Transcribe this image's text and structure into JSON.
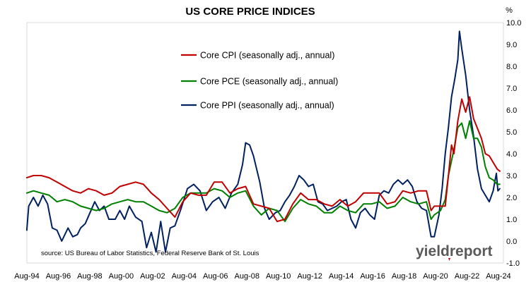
{
  "chart_data": {
    "type": "line",
    "title": "US CORE PRICE INDICES",
    "ylabel": "%",
    "ylim": [
      -1.0,
      10.0
    ],
    "yticks": [
      "-1.0",
      "0.0",
      "1.0",
      "2.0",
      "3.0",
      "4.0",
      "5.0",
      "6.0",
      "7.0",
      "8.0",
      "9.0",
      "10.0"
    ],
    "xlim": [
      1994.583,
      2024.9
    ],
    "xticks": [
      "Aug-94",
      "Aug-96",
      "Aug-98",
      "Aug-00",
      "Aug-02",
      "Aug-04",
      "Aug-06",
      "Aug-08",
      "Aug-10",
      "Aug-12",
      "Aug-14",
      "Aug-16",
      "Aug-18",
      "Aug-20",
      "Aug-22",
      "Aug-24"
    ],
    "grid": false,
    "legend_position": "top-center",
    "source": "source: US Bureau of Labor Statistics, Federal Reserve Bank of St. Louis",
    "watermark": "yieldreport",
    "series": [
      {
        "name": "Core CPI (seasonally adj., annual)",
        "color": "#c00000",
        "points": [
          [
            1994.58,
            2.9
          ],
          [
            1995.0,
            3.0
          ],
          [
            1995.5,
            3.0
          ],
          [
            1996.0,
            2.9
          ],
          [
            1996.5,
            2.7
          ],
          [
            1997.0,
            2.5
          ],
          [
            1997.5,
            2.3
          ],
          [
            1998.0,
            2.2
          ],
          [
            1998.5,
            2.4
          ],
          [
            1999.0,
            2.3
          ],
          [
            1999.5,
            2.1
          ],
          [
            2000.0,
            2.2
          ],
          [
            2000.5,
            2.5
          ],
          [
            2001.0,
            2.6
          ],
          [
            2001.5,
            2.7
          ],
          [
            2002.0,
            2.6
          ],
          [
            2002.5,
            2.2
          ],
          [
            2003.0,
            1.9
          ],
          [
            2003.5,
            1.5
          ],
          [
            2004.0,
            1.1
          ],
          [
            2004.5,
            1.8
          ],
          [
            2005.0,
            2.2
          ],
          [
            2005.5,
            2.1
          ],
          [
            2006.0,
            2.1
          ],
          [
            2006.5,
            2.7
          ],
          [
            2007.0,
            2.7
          ],
          [
            2007.5,
            2.2
          ],
          [
            2008.0,
            2.4
          ],
          [
            2008.5,
            2.5
          ],
          [
            2009.0,
            1.7
          ],
          [
            2009.5,
            1.6
          ],
          [
            2010.0,
            1.5
          ],
          [
            2010.5,
            0.9
          ],
          [
            2011.0,
            1.0
          ],
          [
            2011.5,
            1.7
          ],
          [
            2012.0,
            2.2
          ],
          [
            2012.5,
            1.9
          ],
          [
            2013.0,
            1.9
          ],
          [
            2013.5,
            1.7
          ],
          [
            2014.0,
            1.6
          ],
          [
            2014.5,
            1.9
          ],
          [
            2015.0,
            1.6
          ],
          [
            2015.5,
            1.8
          ],
          [
            2016.0,
            2.2
          ],
          [
            2016.5,
            2.2
          ],
          [
            2017.0,
            2.2
          ],
          [
            2017.5,
            1.7
          ],
          [
            2018.0,
            1.8
          ],
          [
            2018.5,
            2.3
          ],
          [
            2019.0,
            2.2
          ],
          [
            2019.5,
            2.3
          ],
          [
            2020.0,
            2.3
          ],
          [
            2020.3,
            1.4
          ],
          [
            2020.5,
            1.6
          ],
          [
            2020.9,
            1.6
          ],
          [
            2021.2,
            1.6
          ],
          [
            2021.4,
            3.0
          ],
          [
            2021.6,
            4.4
          ],
          [
            2021.75,
            4.0
          ],
          [
            2022.0,
            5.5
          ],
          [
            2022.25,
            6.5
          ],
          [
            2022.5,
            5.9
          ],
          [
            2022.75,
            6.6
          ],
          [
            2023.0,
            5.6
          ],
          [
            2023.5,
            4.7
          ],
          [
            2023.75,
            4.0
          ],
          [
            2024.0,
            3.9
          ],
          [
            2024.25,
            3.6
          ],
          [
            2024.5,
            3.3
          ],
          [
            2024.67,
            3.2
          ]
        ]
      },
      {
        "name": "Core PCE (seasonally adj., annual)",
        "color": "#008000",
        "points": [
          [
            1994.58,
            2.2
          ],
          [
            1995.0,
            2.3
          ],
          [
            1995.5,
            2.2
          ],
          [
            1996.0,
            2.1
          ],
          [
            1996.5,
            1.8
          ],
          [
            1997.0,
            1.9
          ],
          [
            1997.5,
            1.8
          ],
          [
            1998.0,
            1.6
          ],
          [
            1998.5,
            1.5
          ],
          [
            1999.0,
            1.4
          ],
          [
            1999.5,
            1.5
          ],
          [
            2000.0,
            1.7
          ],
          [
            2000.5,
            1.8
          ],
          [
            2001.0,
            1.9
          ],
          [
            2001.5,
            1.8
          ],
          [
            2002.0,
            1.8
          ],
          [
            2002.5,
            1.6
          ],
          [
            2003.0,
            1.4
          ],
          [
            2003.5,
            1.3
          ],
          [
            2004.0,
            1.5
          ],
          [
            2004.5,
            2.0
          ],
          [
            2005.0,
            2.2
          ],
          [
            2005.5,
            2.2
          ],
          [
            2006.0,
            2.2
          ],
          [
            2006.5,
            2.4
          ],
          [
            2007.0,
            2.3
          ],
          [
            2007.5,
            2.0
          ],
          [
            2008.0,
            2.2
          ],
          [
            2008.5,
            2.3
          ],
          [
            2009.0,
            1.6
          ],
          [
            2009.5,
            1.2
          ],
          [
            2010.0,
            1.5
          ],
          [
            2010.5,
            1.4
          ],
          [
            2011.0,
            0.9
          ],
          [
            2011.5,
            1.5
          ],
          [
            2012.0,
            1.9
          ],
          [
            2012.5,
            1.7
          ],
          [
            2013.0,
            1.6
          ],
          [
            2013.5,
            1.3
          ],
          [
            2014.0,
            1.3
          ],
          [
            2014.5,
            1.6
          ],
          [
            2015.0,
            1.4
          ],
          [
            2015.5,
            1.3
          ],
          [
            2016.0,
            1.7
          ],
          [
            2016.5,
            1.7
          ],
          [
            2017.0,
            1.8
          ],
          [
            2017.5,
            1.5
          ],
          [
            2018.0,
            1.6
          ],
          [
            2018.5,
            2.0
          ],
          [
            2019.0,
            1.8
          ],
          [
            2019.5,
            1.7
          ],
          [
            2020.0,
            1.8
          ],
          [
            2020.3,
            1.0
          ],
          [
            2020.5,
            1.2
          ],
          [
            2020.9,
            1.4
          ],
          [
            2021.2,
            1.9
          ],
          [
            2021.4,
            3.0
          ],
          [
            2021.75,
            4.2
          ],
          [
            2022.0,
            5.2
          ],
          [
            2022.25,
            5.4
          ],
          [
            2022.5,
            4.7
          ],
          [
            2022.75,
            5.5
          ],
          [
            2023.0,
            4.7
          ],
          [
            2023.25,
            4.7
          ],
          [
            2023.5,
            4.3
          ],
          [
            2023.75,
            3.4
          ],
          [
            2024.0,
            2.9
          ],
          [
            2024.25,
            2.8
          ],
          [
            2024.5,
            2.6
          ],
          [
            2024.67,
            2.6
          ]
        ]
      },
      {
        "name": "Core PPI (seasonally adj., annual)",
        "color": "#002060",
        "points": [
          [
            1994.58,
            0.5
          ],
          [
            1994.7,
            1.6
          ],
          [
            1995.0,
            2.0
          ],
          [
            1995.3,
            1.6
          ],
          [
            1995.6,
            2.1
          ],
          [
            1995.9,
            1.7
          ],
          [
            1996.2,
            0.6
          ],
          [
            1996.5,
            0.5
          ],
          [
            1996.8,
            0.0
          ],
          [
            1997.2,
            0.6
          ],
          [
            1997.5,
            0.2
          ],
          [
            1997.8,
            0.3
          ],
          [
            1998.0,
            0.6
          ],
          [
            1998.3,
            0.8
          ],
          [
            1998.6,
            1.3
          ],
          [
            1998.9,
            1.8
          ],
          [
            1999.2,
            1.4
          ],
          [
            1999.5,
            1.6
          ],
          [
            1999.8,
            1.0
          ],
          [
            2000.2,
            1.0
          ],
          [
            2000.5,
            1.4
          ],
          [
            2000.8,
            1.0
          ],
          [
            2001.1,
            1.6
          ],
          [
            2001.5,
            1.1
          ],
          [
            2001.9,
            0.9
          ],
          [
            2002.2,
            -0.3
          ],
          [
            2002.5,
            0.4
          ],
          [
            2002.8,
            -0.5
          ],
          [
            2003.1,
            0.9
          ],
          [
            2003.4,
            -0.5
          ],
          [
            2003.7,
            0.6
          ],
          [
            2004.0,
            0.7
          ],
          [
            2004.4,
            1.5
          ],
          [
            2004.8,
            2.4
          ],
          [
            2005.2,
            2.6
          ],
          [
            2005.6,
            2.3
          ],
          [
            2006.0,
            1.4
          ],
          [
            2006.4,
            1.8
          ],
          [
            2006.8,
            2.0
          ],
          [
            2007.2,
            1.5
          ],
          [
            2007.6,
            2.2
          ],
          [
            2008.0,
            2.6
          ],
          [
            2008.3,
            3.5
          ],
          [
            2008.5,
            4.5
          ],
          [
            2008.75,
            4.4
          ],
          [
            2009.0,
            3.9
          ],
          [
            2009.4,
            2.7
          ],
          [
            2009.7,
            1.5
          ],
          [
            2010.0,
            1.0
          ],
          [
            2010.4,
            1.3
          ],
          [
            2010.7,
            1.4
          ],
          [
            2011.0,
            1.8
          ],
          [
            2011.3,
            2.1
          ],
          [
            2011.6,
            2.5
          ],
          [
            2011.9,
            3.0
          ],
          [
            2012.2,
            2.8
          ],
          [
            2012.5,
            2.5
          ],
          [
            2012.8,
            2.6
          ],
          [
            2013.1,
            1.8
          ],
          [
            2013.4,
            1.7
          ],
          [
            2013.7,
            1.4
          ],
          [
            2014.0,
            1.5
          ],
          [
            2014.3,
            1.6
          ],
          [
            2014.6,
            1.8
          ],
          [
            2014.9,
            1.9
          ],
          [
            2015.2,
            1.0
          ],
          [
            2015.5,
            0.6
          ],
          [
            2015.8,
            1.3
          ],
          [
            2016.1,
            1.5
          ],
          [
            2016.4,
            1.2
          ],
          [
            2016.7,
            1.0
          ],
          [
            2017.0,
            2.1
          ],
          [
            2017.3,
            2.3
          ],
          [
            2017.6,
            2.2
          ],
          [
            2017.9,
            2.6
          ],
          [
            2018.2,
            2.8
          ],
          [
            2018.5,
            2.6
          ],
          [
            2018.8,
            2.8
          ],
          [
            2019.1,
            2.5
          ],
          [
            2019.4,
            1.8
          ],
          [
            2019.7,
            1.5
          ],
          [
            2020.0,
            1.4
          ],
          [
            2020.3,
            0.2
          ],
          [
            2020.5,
            0.2
          ],
          [
            2020.8,
            1.2
          ],
          [
            2021.0,
            2.4
          ],
          [
            2021.2,
            4.0
          ],
          [
            2021.4,
            5.2
          ],
          [
            2021.6,
            6.6
          ],
          [
            2021.8,
            7.4
          ],
          [
            2022.0,
            8.3
          ],
          [
            2022.1,
            9.6
          ],
          [
            2022.25,
            8.8
          ],
          [
            2022.5,
            7.6
          ],
          [
            2022.75,
            6.0
          ],
          [
            2023.0,
            4.8
          ],
          [
            2023.25,
            3.3
          ],
          [
            2023.5,
            2.4
          ],
          [
            2023.75,
            2.1
          ],
          [
            2024.0,
            1.8
          ],
          [
            2024.25,
            2.3
          ],
          [
            2024.45,
            3.1
          ],
          [
            2024.55,
            2.3
          ],
          [
            2024.67,
            2.4
          ]
        ]
      }
    ]
  }
}
